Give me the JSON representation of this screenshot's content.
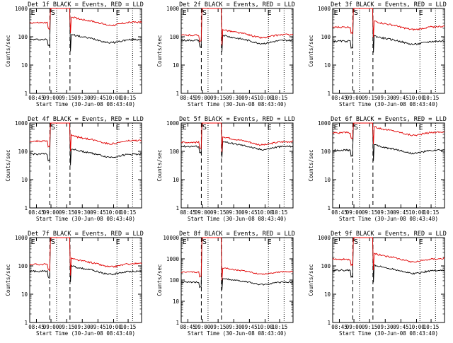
{
  "chart_data": [
    {
      "type": "line",
      "title": "Det 1f BLACK = Events, RED = LLD",
      "ymax_exp": 3,
      "xlabel": "Start Time (30-Jun-08 08:43:40)",
      "ylabel": "Counts/sec",
      "xticks": [
        "08:45",
        "09:00",
        "09:15",
        "09:30",
        "09:45",
        "10:00",
        "10:15"
      ],
      "yticks": [
        "1",
        "10",
        "100",
        "1000"
      ],
      "markers": [
        "E",
        "S",
        "E"
      ],
      "series": [
        {
          "color": "#000000",
          "level": 80
        },
        {
          "color": "#e00000",
          "level": 330
        }
      ]
    },
    {
      "type": "line",
      "title": "Det 2f BLACK = Events, RED = LLD",
      "ymax_exp": 3,
      "xlabel": "Start Time (30-Jun-08 08:43:40)",
      "ylabel": "Counts/sec",
      "xticks": [
        "08:45",
        "09:00",
        "09:15",
        "09:30",
        "09:45",
        "10:00",
        "10:15"
      ],
      "yticks": [
        "1",
        "10",
        "100",
        "1000"
      ],
      "markers": [
        "E",
        "S",
        "E"
      ],
      "series": [
        {
          "color": "#000000",
          "level": 75
        },
        {
          "color": "#e00000",
          "level": 120
        }
      ]
    },
    {
      "type": "line",
      "title": "Det 3f BLACK = Events, RED = LLD",
      "ymax_exp": 3,
      "xlabel": "Start Time (30-Jun-08 08:43:40)",
      "ylabel": "Counts/sec",
      "xticks": [
        "08:45",
        "09:00",
        "09:15",
        "09:30",
        "09:45",
        "10:00",
        "10:15"
      ],
      "yticks": [
        "1",
        "10",
        "100",
        "1000"
      ],
      "markers": [
        "E",
        "S",
        "E"
      ],
      "series": [
        {
          "color": "#000000",
          "level": 70
        },
        {
          "color": "#e00000",
          "level": 230
        }
      ]
    },
    {
      "type": "line",
      "title": "Det 4f BLACK = Events, RED = LLD",
      "ymax_exp": 3,
      "xlabel": "Start Time (30-Jun-08 08:43:40)",
      "ylabel": "Counts/sec",
      "xticks": [
        "08:45",
        "09:00",
        "09:15",
        "09:30",
        "09:45",
        "10:00",
        "10:15"
      ],
      "yticks": [
        "1",
        "10",
        "100",
        "1000"
      ],
      "markers": [
        "E",
        "S",
        "E"
      ],
      "series": [
        {
          "color": "#000000",
          "level": 80
        },
        {
          "color": "#e00000",
          "level": 240
        }
      ]
    },
    {
      "type": "line",
      "title": "Det 5f BLACK = Events, RED = LLD",
      "ymax_exp": 3,
      "xlabel": "Start Time (30-Jun-08 08:43:40)",
      "ylabel": "Counts/sec",
      "xticks": [
        "08:45",
        "09:00",
        "09:15",
        "09:30",
        "09:45",
        "10:00",
        "10:15"
      ],
      "yticks": [
        "1",
        "10",
        "100",
        "1000"
      ],
      "markers": [
        "E",
        "S",
        "E"
      ],
      "series": [
        {
          "color": "#000000",
          "level": 150
        },
        {
          "color": "#e00000",
          "level": 220
        }
      ]
    },
    {
      "type": "line",
      "title": "Det 6f BLACK = Events, RED = LLD",
      "ymax_exp": 3,
      "xlabel": "Start Time (30-Jun-08 08:43:40)",
      "ylabel": "Counts/sec",
      "xticks": [
        "08:45",
        "09:00",
        "09:15",
        "09:30",
        "09:45",
        "10:00",
        "10:15"
      ],
      "yticks": [
        "1",
        "10",
        "100",
        "1000"
      ],
      "markers": [
        "E",
        "S",
        "E"
      ],
      "series": [
        {
          "color": "#000000",
          "level": 110
        },
        {
          "color": "#e00000",
          "level": 480
        }
      ]
    },
    {
      "type": "line",
      "title": "Det 7f BLACK = Events, RED = LLD",
      "ymax_exp": 3,
      "xlabel": "Start Time (30-Jun-08 08:43:40)",
      "ylabel": "Counts/sec",
      "xticks": [
        "08:45",
        "09:00",
        "09:15",
        "09:30",
        "09:45",
        "10:00",
        "10:15"
      ],
      "yticks": [
        "1",
        "10",
        "100",
        "1000"
      ],
      "markers": [
        "E",
        "S",
        "E"
      ],
      "series": [
        {
          "color": "#000000",
          "level": 65
        },
        {
          "color": "#e00000",
          "level": 120
        }
      ]
    },
    {
      "type": "line",
      "title": "Det 8f BLACK = Events, RED = LLD",
      "ymax_exp": 4,
      "xlabel": "Start Time (30-Jun-08 08:43:40)",
      "ylabel": "Counts/sec",
      "xticks": [
        "08:45",
        "09:00",
        "09:15",
        "09:30",
        "09:45",
        "10:00",
        "10:15"
      ],
      "yticks": [
        "1",
        "10",
        "100",
        "1000",
        "10000"
      ],
      "markers": [
        "E",
        "S",
        "E"
      ],
      "series": [
        {
          "color": "#000000",
          "level": 80
        },
        {
          "color": "#e00000",
          "level": 250
        }
      ]
    },
    {
      "type": "line",
      "title": "Det 9f BLACK = Events, RED = LLD",
      "ymax_exp": 3,
      "xlabel": "Start Time (30-Jun-08 08:43:40)",
      "ylabel": "Counts/sec",
      "xticks": [
        "08:45",
        "09:00",
        "09:15",
        "09:30",
        "09:45",
        "10:00",
        "10:15"
      ],
      "yticks": [
        "1",
        "10",
        "100",
        "1000"
      ],
      "markers": [
        "E",
        "S",
        "E"
      ],
      "series": [
        {
          "color": "#000000",
          "level": 70
        },
        {
          "color": "#e00000",
          "level": 180
        }
      ]
    }
  ]
}
